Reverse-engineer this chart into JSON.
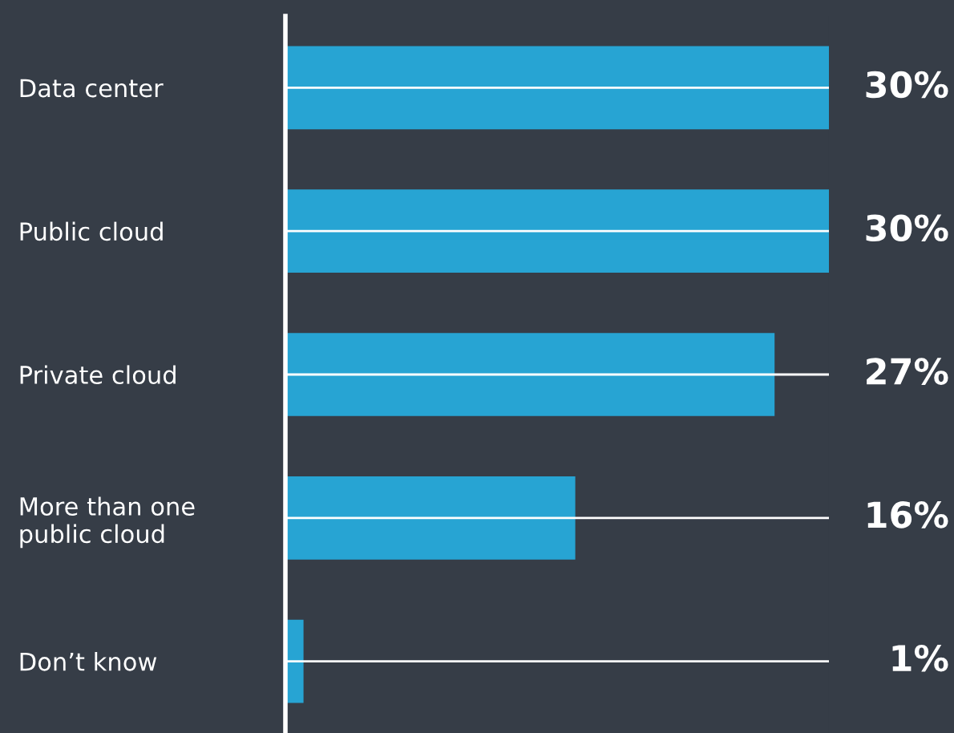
{
  "chart_data": {
    "type": "bar",
    "orientation": "horizontal",
    "categories": [
      "Data center",
      "Public cloud",
      "Private cloud",
      "More than one\npublic cloud",
      "Don’t know"
    ],
    "values": [
      30,
      30,
      27,
      16,
      1
    ],
    "value_labels": [
      "30%",
      "30%",
      "27%",
      "16%",
      "1%"
    ],
    "color": "#27a4d3",
    "grid": "y"
  }
}
